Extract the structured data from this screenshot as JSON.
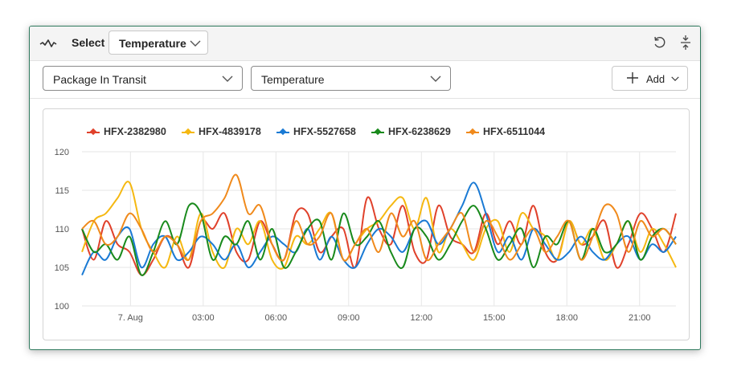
{
  "toolbar": {
    "select_label": "Select",
    "metric_select_value": "Temperature",
    "icons": [
      "trend-icon",
      "chevron-down-icon",
      "reset-icon",
      "collapse-icon"
    ]
  },
  "filters": {
    "asset_dropdown_value": "Package In Transit",
    "property_dropdown_value": "Temperature",
    "add_button_label": "Add"
  },
  "chart_data": {
    "type": "line",
    "title": "",
    "xlabel": "",
    "ylabel": "",
    "ylim": [
      100,
      120
    ],
    "yticks": [
      100,
      105,
      110,
      115,
      120
    ],
    "x_range": [
      "2023-08-06T22:00",
      "2023-08-07T22:30"
    ],
    "x_tick_labels": [
      "7. Aug",
      "03:00",
      "06:00",
      "09:00",
      "12:00",
      "15:00",
      "18:00",
      "21:00"
    ],
    "grid": true,
    "legend_position": "top-left",
    "x_interval": "30 minutes",
    "series": [
      {
        "name": "HFX-2382980",
        "color": "#e0412b",
        "values": [
          110,
          106,
          111,
          108,
          107,
          104,
          106,
          109,
          108,
          105,
          111,
          110,
          112,
          107,
          106,
          111,
          108,
          106,
          112,
          112,
          107,
          109,
          110,
          105,
          114,
          110,
          108,
          113,
          107,
          106,
          113,
          109,
          108,
          107,
          112,
          108,
          111,
          108,
          113,
          107,
          106,
          111,
          108,
          109,
          111,
          105,
          108,
          112,
          110,
          107,
          112
        ]
      },
      {
        "name": "HFX-4839178",
        "color": "#f5b811",
        "values": [
          107,
          111,
          112,
          114,
          116,
          110,
          107,
          105,
          109,
          106,
          112,
          107,
          105,
          110,
          108,
          111,
          106,
          105,
          109,
          108,
          110,
          112,
          106,
          108,
          110,
          111,
          113,
          114,
          110,
          114,
          107,
          110,
          108,
          106,
          110,
          111,
          107,
          112,
          110,
          109,
          106,
          111,
          108,
          110,
          106,
          108,
          111,
          107,
          110,
          108,
          105
        ]
      },
      {
        "name": "HFX-5527658",
        "color": "#1a7ad4",
        "values": [
          104,
          107,
          106,
          109,
          110,
          105,
          108,
          109,
          106,
          107,
          109,
          108,
          106,
          108,
          105,
          107,
          109,
          108,
          107,
          110,
          106,
          109,
          106,
          105,
          108,
          110,
          109,
          107,
          110,
          111,
          108,
          110,
          113,
          116,
          112,
          107,
          109,
          106,
          110,
          108,
          106,
          107,
          109,
          107,
          106,
          108,
          109,
          106,
          108,
          107,
          109
        ]
      },
      {
        "name": "HFX-6238629",
        "color": "#198a1c",
        "values": [
          110,
          107,
          108,
          106,
          109,
          104,
          107,
          111,
          108,
          113,
          112,
          106,
          109,
          108,
          111,
          106,
          110,
          105,
          107,
          110,
          111,
          106,
          112,
          108,
          109,
          111,
          107,
          105,
          110,
          109,
          106,
          108,
          111,
          113,
          110,
          106,
          108,
          110,
          105,
          109,
          108,
          111,
          106,
          110,
          107,
          108,
          111,
          106,
          109,
          110,
          108
        ]
      },
      {
        "name": "HFX-6511044",
        "color": "#f08a1c",
        "values": [
          110,
          111,
          108,
          109,
          112,
          110,
          107,
          109,
          108,
          106,
          111,
          112,
          114,
          117,
          112,
          113,
          108,
          106,
          111,
          108,
          109,
          112,
          106,
          108,
          110,
          107,
          112,
          109,
          111,
          106,
          108,
          110,
          112,
          107,
          111,
          109,
          106,
          108,
          110,
          107,
          109,
          111,
          106,
          109,
          113,
          112,
          107,
          111,
          109,
          110,
          108
        ]
      }
    ]
  }
}
